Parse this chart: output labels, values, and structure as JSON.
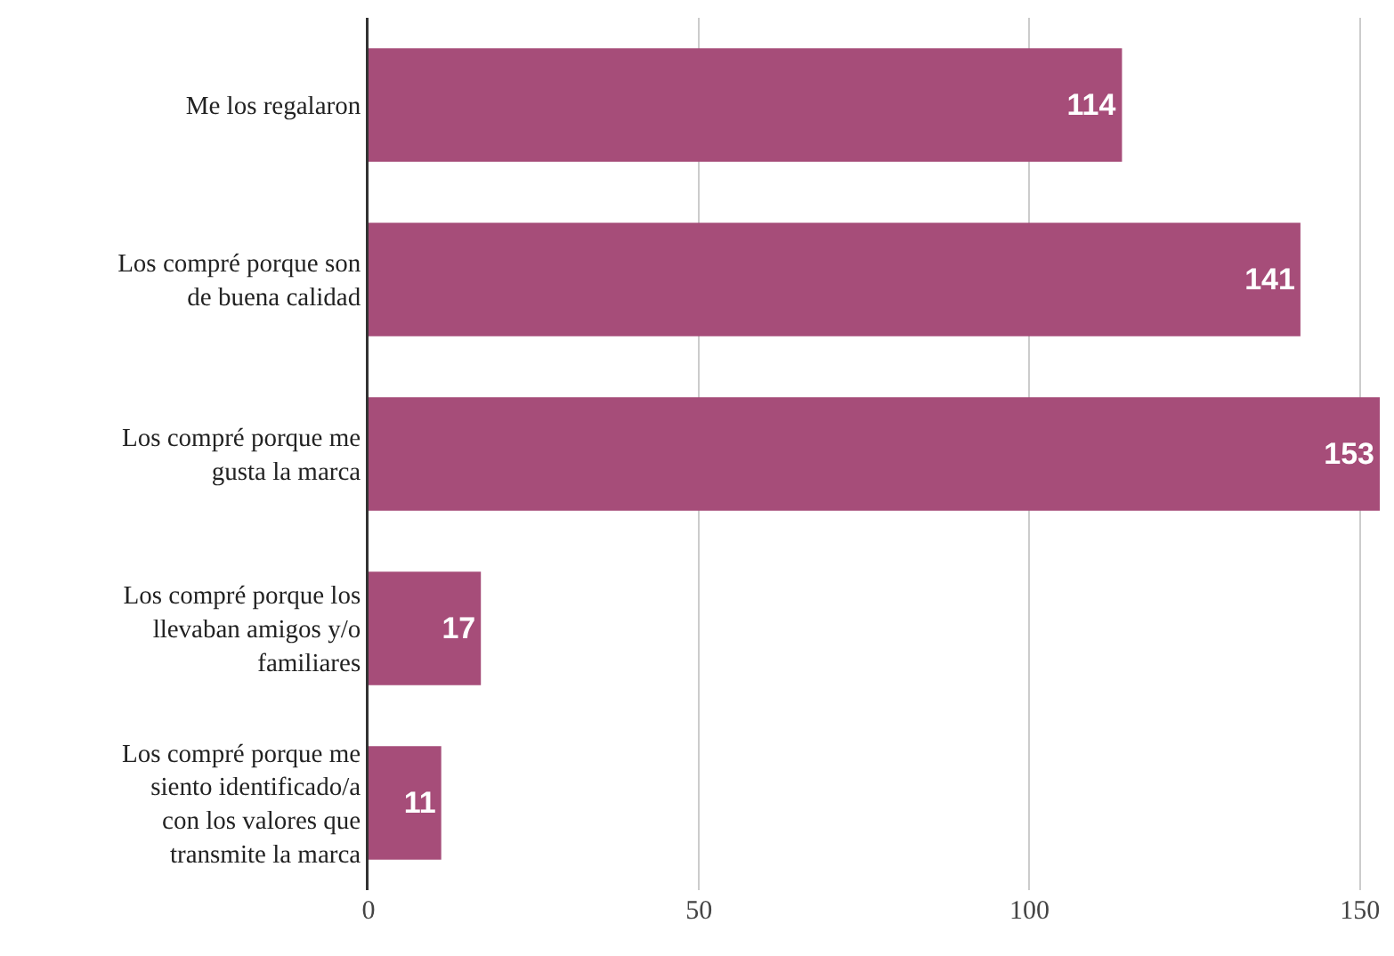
{
  "chart_data": {
    "type": "bar",
    "orientation": "horizontal",
    "categories": [
      "Me los regalaron",
      "Los compré porque son de buena calidad",
      "Los compré porque me gusta la marca",
      "Los compré porque los llevaban amigos y/o familiares",
      "Los compré porque me siento identificado/a con los valores que transmite la marca"
    ],
    "values": [
      114,
      141,
      153,
      17,
      11
    ],
    "color": "#a64d79",
    "xlim": [
      0,
      153
    ],
    "xticks": [
      0,
      50,
      100,
      150
    ],
    "grid": "x",
    "data_labels": true
  }
}
